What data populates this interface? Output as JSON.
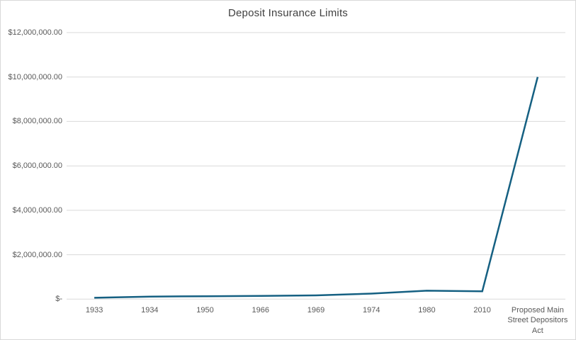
{
  "chart": {
    "title": "Deposit Insurance Limits"
  },
  "colors": {
    "line": "#156082",
    "title_text": "#404040",
    "axis_text": "#595959",
    "gridline": "#D9D9D9",
    "axis_line": "#D9D9D9",
    "border": "#D9D9D9",
    "background": "#FFFFFF"
  },
  "chart_data": {
    "type": "line",
    "title": "Deposit Insurance Limits",
    "categories": [
      "1933",
      "1934",
      "1950",
      "1966",
      "1969",
      "1974",
      "1980",
      "2010",
      "Proposed Main Street Depositors Act"
    ],
    "series": [
      {
        "name": "Deposit Insurance Limit",
        "values": [
          60000,
          115000,
          130000,
          145000,
          170000,
          250000,
          380000,
          350000,
          10000000
        ]
      }
    ],
    "xlabel": "",
    "ylabel": "",
    "ylim": [
      0,
      12000000
    ],
    "y_ticks": [
      {
        "value": 0,
        "label": "$-"
      },
      {
        "value": 2000000,
        "label": "$2,000,000.00"
      },
      {
        "value": 4000000,
        "label": "$4,000,000.00"
      },
      {
        "value": 6000000,
        "label": "$6,000,000.00"
      },
      {
        "value": 8000000,
        "label": "$8,000,000.00"
      },
      {
        "value": 10000000,
        "label": "$10,000,000.00"
      },
      {
        "value": 12000000,
        "label": "$12,000,000.00"
      }
    ],
    "grid": true,
    "legend_position": "none",
    "line_width": 2.5
  }
}
